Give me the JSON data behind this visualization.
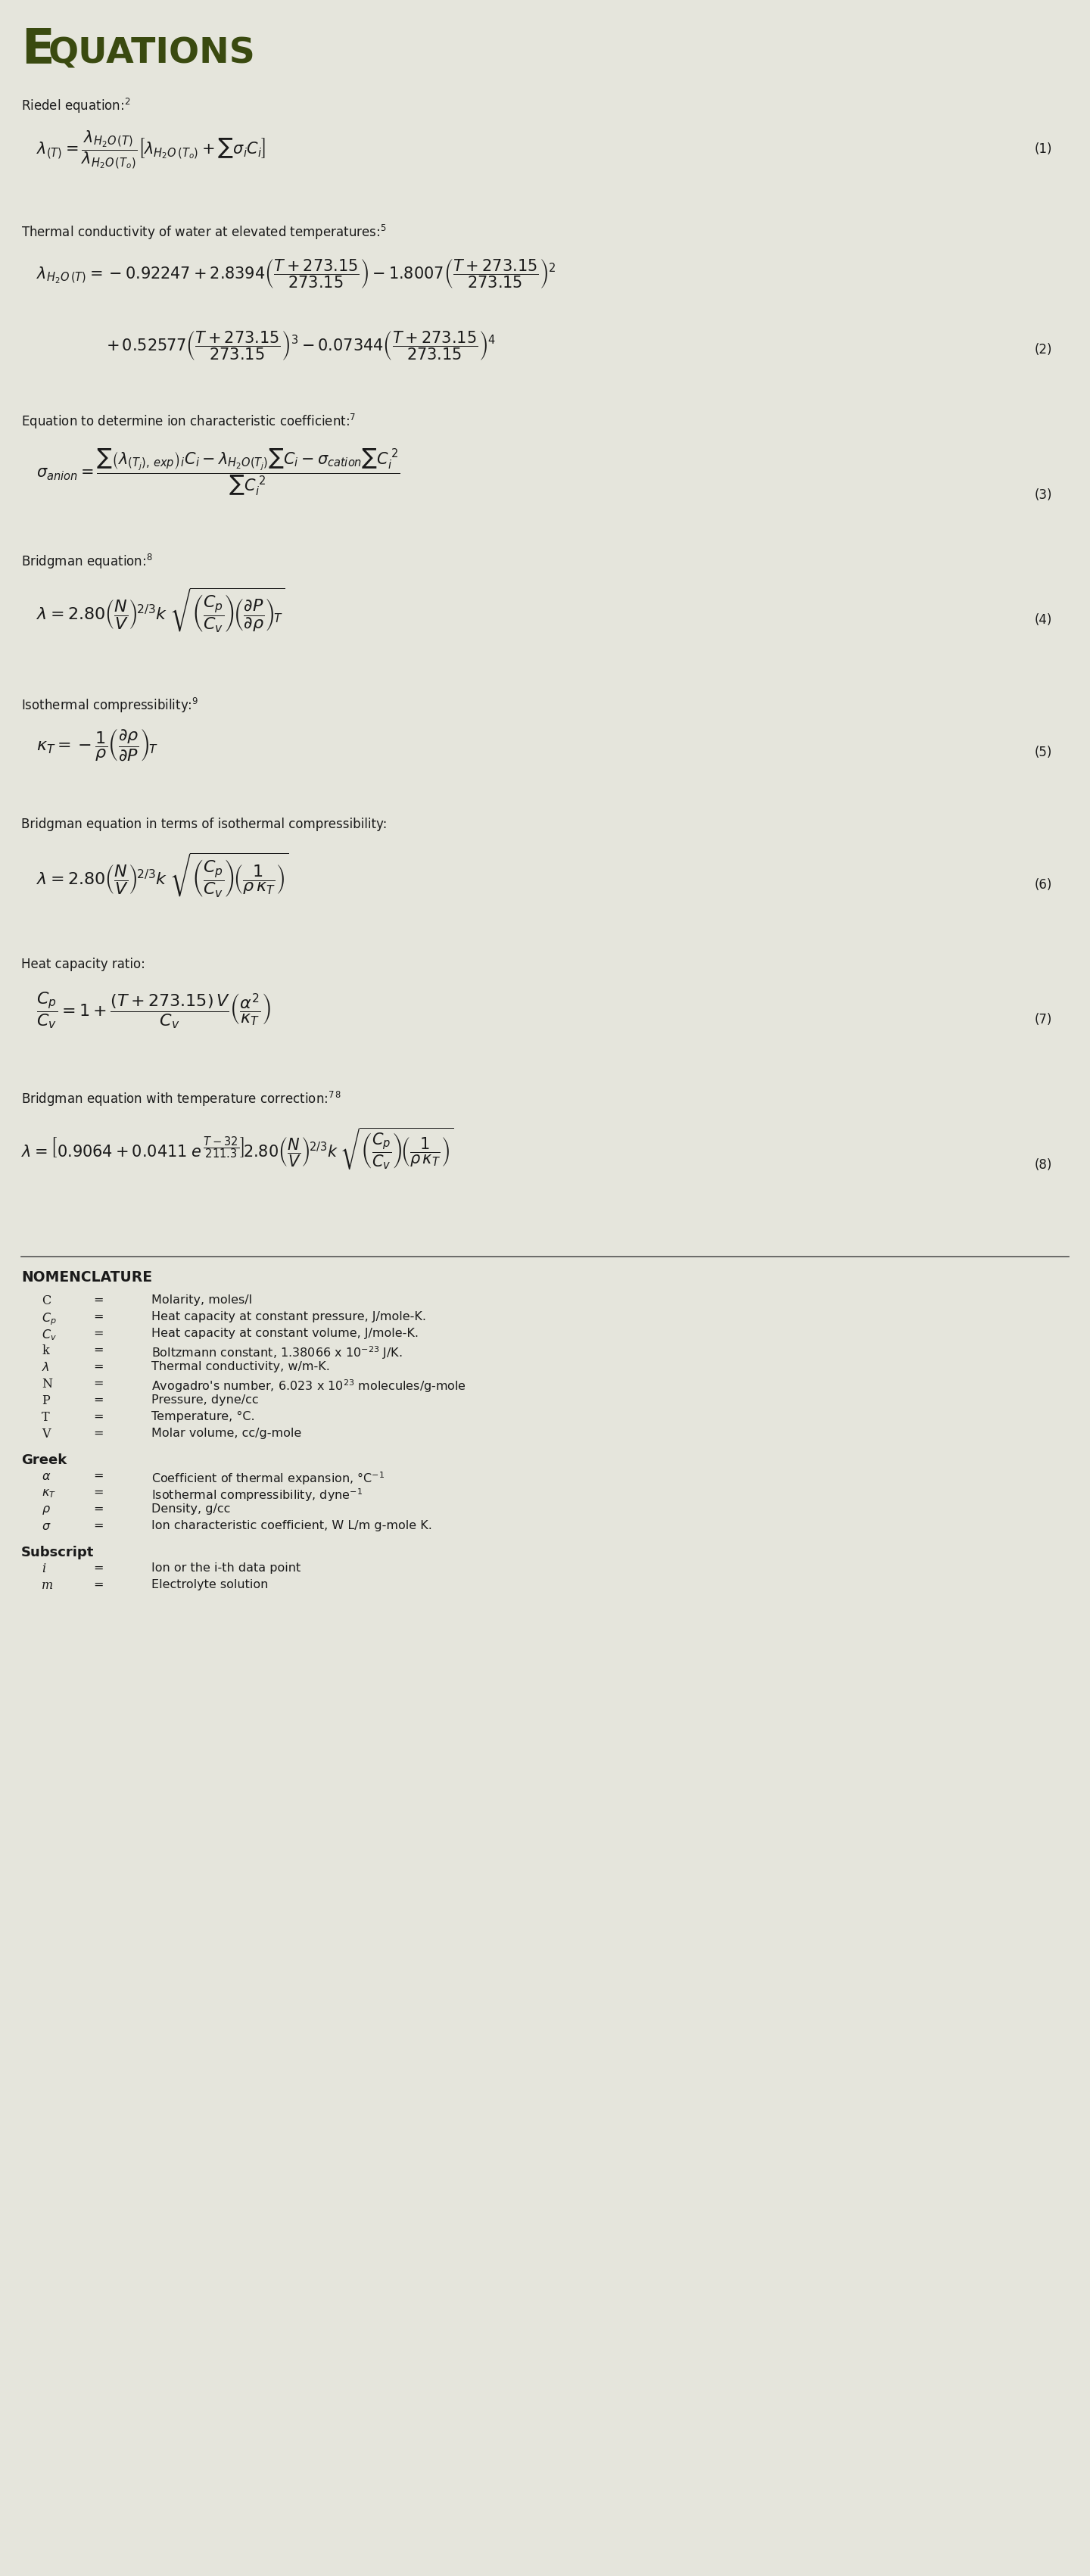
{
  "background_color": "#e5e5dc",
  "title_color": "#3a4a10",
  "text_color": "#1a1a1a",
  "fig_width": 14.4,
  "fig_height": 34.03,
  "eq_label_fontsize": 12,
  "eq_fontsize": 15,
  "label_fontsize": 12,
  "nom_fontsize": 11.5
}
